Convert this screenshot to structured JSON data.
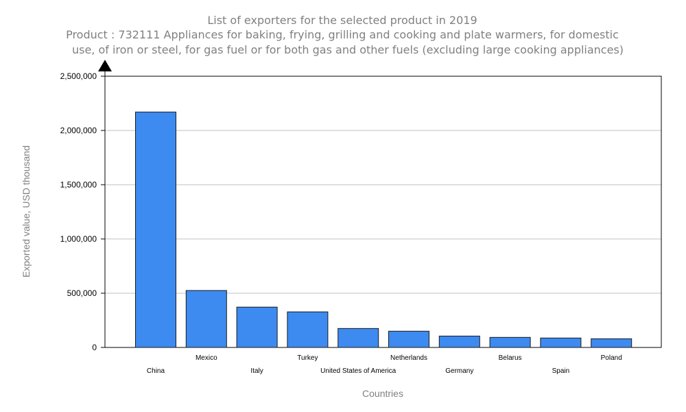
{
  "chart_data": {
    "type": "bar",
    "title": "List of exporters for the selected product in 2019",
    "subtitle_lines": [
      "Product : 732111 Appliances for baking, frying, grilling and cooking and plate warmers, for domestic",
      "use, of iron or steel, for gas fuel or for both gas and other fuels (excluding large cooking appliances)"
    ],
    "xlabel": "Countries",
    "ylabel": "Exported value, USD thousand",
    "categories": [
      "China",
      "Mexico",
      "Italy",
      "Turkey",
      "United States of America",
      "Netherlands",
      "Germany",
      "Belarus",
      "Spain",
      "Poland"
    ],
    "values": [
      2170000,
      525000,
      372000,
      328000,
      175000,
      150000,
      105000,
      93000,
      87000,
      80000
    ],
    "ylim": [
      0,
      2500000
    ],
    "yticks": [
      0,
      500000,
      1000000,
      1500000,
      2000000,
      2500000
    ],
    "ytick_labels": [
      "0",
      "500,000",
      "1,000,000",
      "1,500,000",
      "2,000,000",
      "2,500,000"
    ],
    "grid": true,
    "legend": "none",
    "colors": {
      "bar": "#3d8af0",
      "bar_stroke": "#1a1a1a",
      "grid": "#c0c0c0",
      "text_muted": "#808080",
      "axis": "#000000"
    }
  }
}
